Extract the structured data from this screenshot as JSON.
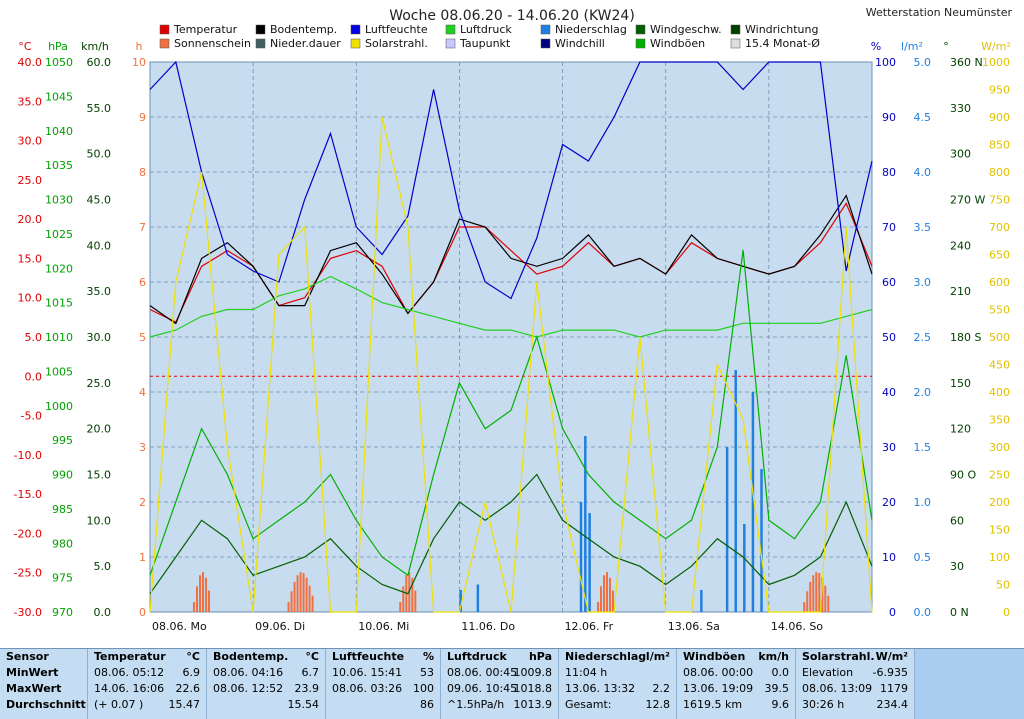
{
  "title": "Woche 08.06.20 - 14.06.20 (KW24)",
  "station": "Wetterstation Neumünster",
  "legend": [
    {
      "label": "Temperatur",
      "color": "#e00000"
    },
    {
      "label": "Bodentemp.",
      "color": "#000000"
    },
    {
      "label": "Luftfeuchte",
      "color": "#0000e0"
    },
    {
      "label": "Luftdruck",
      "color": "#20d020"
    },
    {
      "label": "Niederschlag",
      "color": "#2080e0"
    },
    {
      "label": "Windgeschw.",
      "color": "#006000"
    },
    {
      "label": "Windrichtung",
      "color": "#004000"
    },
    {
      "label": "Sonnenschein",
      "color": "#f07040"
    },
    {
      "label": "Nieder.dauer",
      "color": "#406060"
    },
    {
      "label": "Solarstrahl.",
      "color": "#f0e000"
    },
    {
      "label": "Taupunkt",
      "color": "#c8c8ff"
    },
    {
      "label": "Windchill",
      "color": "#000080"
    },
    {
      "label": "Windböen",
      "color": "#00b000"
    },
    {
      "label": "15.4 Monat-Ø",
      "color": "#dddddd"
    }
  ],
  "axes": {
    "temp": {
      "unit": "°C",
      "ticks": [
        "40.0",
        "35.0",
        "30.0",
        "25.0",
        "20.0",
        "15.0",
        "10.0",
        "5.0",
        "0.0",
        "-5.0",
        "-10.0",
        "-15.0",
        "-20.0",
        "-25.0",
        "-30.0"
      ],
      "color": "#e00000"
    },
    "press": {
      "unit": "hPa",
      "ticks": [
        "1050",
        "1045",
        "1040",
        "1035",
        "1030",
        "1025",
        "1020",
        "1015",
        "1010",
        "1005",
        "1000",
        "995",
        "990",
        "985",
        "980",
        "975",
        "970"
      ],
      "color": "#00a000"
    },
    "wind": {
      "unit": "km/h",
      "ticks": [
        "60.0",
        "55.0",
        "50.0",
        "45.0",
        "40.0",
        "35.0",
        "30.0",
        "25.0",
        "20.0",
        "15.0",
        "10.0",
        "5.0",
        "0.0"
      ],
      "color": "#004000"
    },
    "sun": {
      "unit": "h",
      "ticks": [
        "10",
        "9",
        "8",
        "7",
        "6",
        "5",
        "4",
        "3",
        "2",
        "1",
        "0"
      ],
      "color": "#f07040"
    },
    "hum": {
      "unit": "%",
      "ticks": [
        "100",
        "90",
        "80",
        "70",
        "60",
        "50",
        "40",
        "30",
        "20",
        "10",
        "0"
      ],
      "color": "#0000c0"
    },
    "rain": {
      "unit": "l/m²",
      "ticks": [
        "5.0",
        "4.5",
        "4.0",
        "3.5",
        "3.0",
        "2.5",
        "2.0",
        "1.5",
        "1.0",
        "0.5",
        "0.0"
      ],
      "color": "#2080e0"
    },
    "dir": {
      "unit": "°",
      "ticks": [
        "360 N",
        "330",
        "300",
        "270 W",
        "240",
        "210",
        "180 S",
        "150",
        "120",
        "90 O",
        "60",
        "30",
        "0 N"
      ],
      "color": "#004000"
    },
    "solar": {
      "unit": "W/m²",
      "ticks": [
        "1000",
        "950",
        "900",
        "850",
        "800",
        "750",
        "700",
        "650",
        "600",
        "550",
        "500",
        "450",
        "400",
        "350",
        "300",
        "250",
        "200",
        "150",
        "100",
        "50",
        "0"
      ],
      "color": "#e0c000"
    }
  },
  "days": [
    "08.06. Mo",
    "09.06. Di",
    "10.06. Mi",
    "11.06. Do",
    "12.06. Fr",
    "13.06. Sa",
    "14.06. So"
  ],
  "chart_data": {
    "type": "line",
    "title": "Woche 08.06.20 - 14.06.20 (KW24)",
    "x": [
      0,
      6,
      12,
      18,
      24,
      30,
      36,
      42,
      48,
      54,
      60,
      66,
      72,
      78,
      84,
      90,
      96,
      102,
      108,
      114,
      120,
      126,
      132,
      138,
      144,
      150,
      156,
      162,
      168
    ],
    "x_unit": "hours since 08.06. 00:00",
    "ylim_temp": [
      -30,
      40
    ],
    "series": [
      {
        "name": "Temperatur",
        "unit": "°C",
        "values": [
          8.5,
          6.9,
          14,
          16,
          14,
          9,
          10,
          15,
          16,
          14,
          8,
          12,
          19,
          19,
          16,
          13,
          14,
          17,
          14,
          15,
          13,
          17,
          15,
          14,
          13,
          14,
          17,
          22,
          14
        ]
      },
      {
        "name": "Bodentemp.",
        "unit": "°C",
        "values": [
          9,
          6.7,
          15,
          17,
          14,
          9,
          9,
          16,
          17,
          13,
          8,
          12,
          20,
          19,
          15,
          14,
          15,
          18,
          14,
          15,
          13,
          18,
          15,
          14,
          13,
          14,
          18,
          23,
          13
        ]
      },
      {
        "name": "Luftfeuchte",
        "unit": "%",
        "values": [
          95,
          100,
          80,
          65,
          62,
          60,
          75,
          87,
          70,
          65,
          72,
          95,
          73,
          60,
          57,
          68,
          85,
          82,
          90,
          100,
          100,
          100,
          100,
          95,
          100,
          100,
          100,
          62,
          82
        ]
      },
      {
        "name": "Luftdruck",
        "unit": "hPa",
        "values": [
          1010,
          1011,
          1013,
          1014,
          1014,
          1016,
          1017,
          1018.8,
          1017,
          1015,
          1014,
          1013,
          1012,
          1011,
          1011,
          1010,
          1011,
          1011,
          1011,
          1010,
          1011,
          1011,
          1011,
          1012,
          1012,
          1012,
          1012,
          1013,
          1014
        ]
      },
      {
        "name": "Windgeschw.",
        "unit": "km/h",
        "values": [
          2,
          6,
          10,
          8,
          4,
          5,
          6,
          8,
          5,
          3,
          2,
          8,
          12,
          10,
          12,
          15,
          10,
          8,
          6,
          5,
          3,
          5,
          8,
          6,
          3,
          4,
          6,
          12,
          5
        ]
      },
      {
        "name": "Windböen",
        "unit": "km/h",
        "values": [
          4,
          12,
          20,
          15,
          8,
          10,
          12,
          15,
          10,
          6,
          4,
          15,
          25,
          20,
          22,
          30,
          20,
          15,
          12,
          10,
          8,
          10,
          18,
          39.5,
          10,
          8,
          12,
          28,
          10
        ]
      },
      {
        "name": "Solarstrahl.",
        "unit": "W/m²",
        "values": [
          0,
          600,
          800,
          300,
          0,
          650,
          700,
          0,
          0,
          900,
          700,
          0,
          0,
          200,
          0,
          600,
          200,
          0,
          0,
          500,
          0,
          0,
          450,
          350,
          0,
          0,
          0,
          700,
          0
        ]
      }
    ],
    "summary": {
      "headers": [
        "Sensor",
        "Temperatur",
        "°C",
        "Bodentemp.",
        "°C",
        "Luftfeuchte",
        "%",
        "Luftdruck",
        "hPa",
        "Niederschlag",
        "l/m²",
        "Windböen",
        "km/h",
        "Solarstrahl.",
        "W/m²"
      ],
      "rows": [
        [
          "MinWert",
          "08.06.  05:12",
          "6.9",
          "08.06.  04:16",
          "6.7",
          "10.06.  15:41",
          "53",
          "08.06.  00:45",
          "1009.8",
          "11:04 h",
          "",
          "08.06.  00:00",
          "0.0",
          "Elevation",
          "-6.935"
        ],
        [
          "MaxWert",
          "14.06.  16:06",
          "22.6",
          "08.06.  12:52",
          "23.9",
          "08.06.  03:26",
          "100",
          "09.06.  10:45",
          "1018.8",
          "13.06.  13:32",
          "2.2",
          "13.06.  19:09",
          "39.5",
          "08.06.  13:09",
          "1179"
        ],
        [
          "Durchschnitt",
          "(+ 0.07 )",
          "15.47",
          "",
          "15.54",
          "",
          "86",
          "^1.5hPa/h",
          "1013.9",
          "Gesamt:",
          "12.8",
          "1619.5 km",
          "9.6",
          "30:26 h",
          "234.4"
        ]
      ]
    }
  }
}
